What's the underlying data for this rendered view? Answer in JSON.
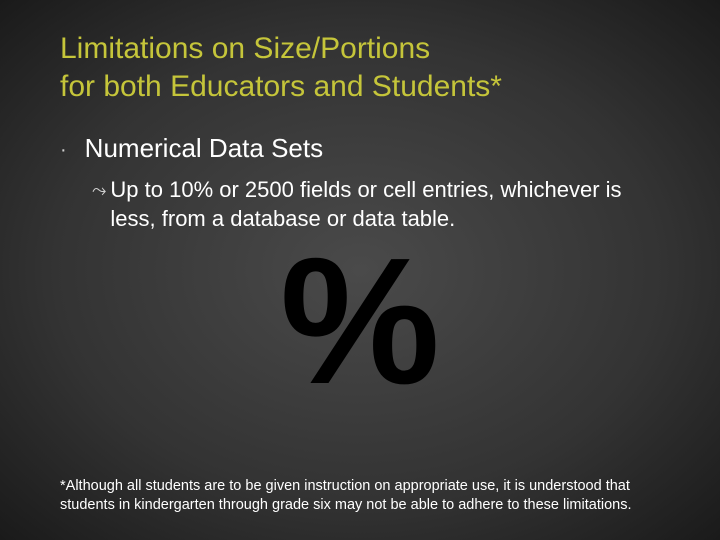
{
  "title_line1": "Limitations on Size/Portions",
  "title_line2": "for both Educators and Students*",
  "bullet": {
    "dot": "·",
    "text": "Numerical Data Sets"
  },
  "sub": {
    "icon": "⤳",
    "text": "Up to 10% or 2500 fields or cell entries, whichever is less, from a database or data table."
  },
  "percent_symbol": "%",
  "footnote": "*Although all students are to be given instruction on appropriate use, it is understood that students in kindergarten through grade six may not be able to adhere to these limitations.",
  "colors": {
    "title": "#c5c53a",
    "body_text": "#ffffff",
    "bullet_dot": "#d0d0d0",
    "percent": "#000000",
    "bg_center": "#4a4a4a",
    "bg_edge": "#1a1a1a"
  },
  "fonts": {
    "title_size_pt": 30,
    "bullet_size_pt": 26,
    "sub_size_pt": 22,
    "footnote_size_pt": 14.5,
    "percent_size_pt": 180
  }
}
